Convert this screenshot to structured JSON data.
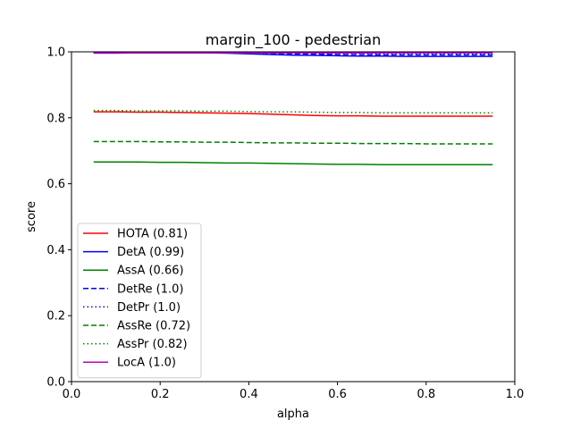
{
  "chart_data": {
    "type": "line",
    "title": "margin_100 - pedestrian",
    "xlabel": "alpha",
    "ylabel": "score",
    "xlim": [
      0.0,
      1.0
    ],
    "ylim": [
      0.0,
      1.0
    ],
    "xticks": [
      "0.0",
      "0.2",
      "0.4",
      "0.6",
      "0.8",
      "1.0"
    ],
    "yticks": [
      "0.0",
      "0.2",
      "0.4",
      "0.6",
      "0.8",
      "1.0"
    ],
    "grid": false,
    "legend_position": "lower-left",
    "x": [
      0.05,
      0.1,
      0.15,
      0.2,
      0.25,
      0.3,
      0.35,
      0.4,
      0.45,
      0.5,
      0.55,
      0.6,
      0.65,
      0.7,
      0.75,
      0.8,
      0.85,
      0.9,
      0.95
    ],
    "series": [
      {
        "name": "HOTA (0.81)",
        "color": "#ff0000",
        "dash": "solid",
        "values": [
          0.818,
          0.818,
          0.817,
          0.817,
          0.816,
          0.815,
          0.814,
          0.813,
          0.811,
          0.809,
          0.807,
          0.806,
          0.806,
          0.805,
          0.805,
          0.805,
          0.805,
          0.805,
          0.805
        ]
      },
      {
        "name": "DetA (0.99)",
        "color": "#0000ff",
        "dash": "solid",
        "values": [
          0.997,
          0.997,
          0.997,
          0.997,
          0.997,
          0.997,
          0.996,
          0.994,
          0.992,
          0.99,
          0.989,
          0.988,
          0.987,
          0.987,
          0.986,
          0.986,
          0.986,
          0.986,
          0.986
        ]
      },
      {
        "name": "AssA (0.66)",
        "color": "#008000",
        "dash": "solid",
        "values": [
          0.666,
          0.666,
          0.666,
          0.665,
          0.665,
          0.664,
          0.663,
          0.663,
          0.662,
          0.661,
          0.66,
          0.659,
          0.659,
          0.658,
          0.658,
          0.658,
          0.658,
          0.658,
          0.658
        ]
      },
      {
        "name": "DetRe (1.0)",
        "color": "#0000ff",
        "dash": "dashed",
        "values": [
          0.998,
          0.998,
          0.998,
          0.998,
          0.998,
          0.998,
          0.997,
          0.996,
          0.995,
          0.994,
          0.993,
          0.992,
          0.992,
          0.991,
          0.991,
          0.991,
          0.991,
          0.991,
          0.991
        ]
      },
      {
        "name": "DetPr (1.0)",
        "color": "#0000ff",
        "dash": "dotted",
        "values": [
          0.999,
          0.999,
          0.999,
          0.999,
          0.999,
          0.999,
          0.998,
          0.998,
          0.997,
          0.997,
          0.996,
          0.996,
          0.996,
          0.995,
          0.995,
          0.995,
          0.995,
          0.995,
          0.995
        ]
      },
      {
        "name": "AssRe (0.72)",
        "color": "#008000",
        "dash": "dashed",
        "values": [
          0.728,
          0.728,
          0.728,
          0.727,
          0.727,
          0.726,
          0.726,
          0.725,
          0.724,
          0.724,
          0.723,
          0.723,
          0.722,
          0.722,
          0.722,
          0.721,
          0.721,
          0.721,
          0.721
        ]
      },
      {
        "name": "AssPr (0.82)",
        "color": "#008000",
        "dash": "dotted",
        "values": [
          0.822,
          0.822,
          0.821,
          0.821,
          0.821,
          0.82,
          0.82,
          0.819,
          0.818,
          0.818,
          0.817,
          0.816,
          0.816,
          0.815,
          0.815,
          0.815,
          0.815,
          0.815,
          0.815
        ]
      },
      {
        "name": "LocA (1.0)",
        "color": "#bf00bf",
        "dash": "solid",
        "values": [
          0.996,
          0.996,
          0.997,
          0.997,
          0.997,
          0.997,
          0.997,
          0.997,
          0.997,
          0.997,
          0.997,
          0.997,
          0.997,
          0.997,
          0.997,
          0.997,
          0.997,
          0.997,
          0.997
        ]
      }
    ]
  }
}
